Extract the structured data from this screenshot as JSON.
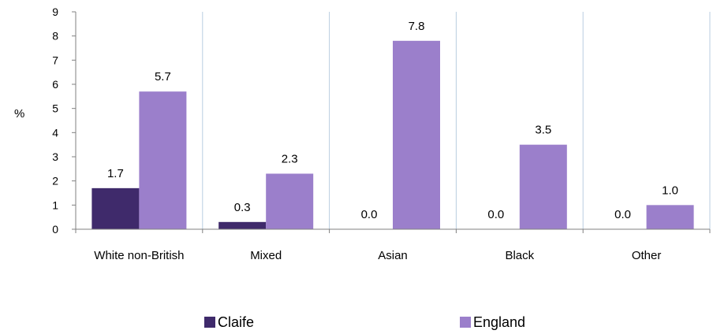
{
  "chart_data": {
    "type": "bar",
    "categories": [
      "White non-British",
      "Mixed",
      "Asian",
      "Black",
      "Other"
    ],
    "series": [
      {
        "name": "Claife",
        "values": [
          1.7,
          0.3,
          0.0,
          0.0,
          0.0
        ],
        "labels": [
          "1.7",
          "0.3",
          "0.0",
          "0.0",
          "0.0"
        ],
        "color": "#3f2a6b"
      },
      {
        "name": "England",
        "values": [
          5.7,
          2.3,
          7.8,
          3.5,
          1.0
        ],
        "labels": [
          "5.7",
          "2.3",
          "7.8",
          "3.5",
          "1.0"
        ],
        "color": "#9b7fcb"
      }
    ],
    "ylabel": "%",
    "ylim": [
      0,
      9
    ],
    "yticks": [
      "0",
      "1",
      "2",
      "3",
      "4",
      "5",
      "6",
      "7",
      "8",
      "9"
    ],
    "grid": "vertical",
    "grid_color": "#b9cde0",
    "legend_position": "bottom"
  }
}
